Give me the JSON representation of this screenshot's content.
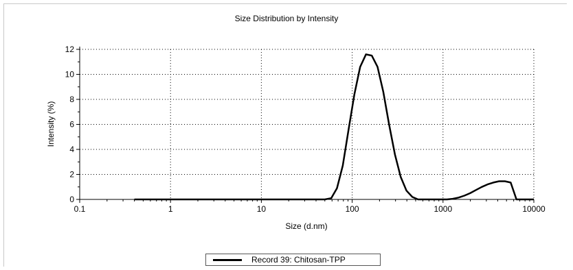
{
  "chart_data": {
    "type": "line",
    "title": "Size Distribution by Intensity",
    "xlabel": "Size (d.nm)",
    "ylabel": "Intensity (%)",
    "xscale": "log",
    "xlim": [
      0.1,
      10000
    ],
    "ylim": [
      0,
      12
    ],
    "x_ticks": [
      "0.1",
      "1",
      "10",
      "100",
      "1000",
      "10000"
    ],
    "y_ticks": [
      "0",
      "2",
      "4",
      "6",
      "8",
      "10",
      "12"
    ],
    "grid": true,
    "legend_position": "bottom-center",
    "series": [
      {
        "name": "Record 39: Chitosan-TPP",
        "color": "#000000",
        "x": [
          0.4,
          1,
          10,
          50,
          58.8,
          68.1,
          78.8,
          91.3,
          105.7,
          122.4,
          141.8,
          164.2,
          190.1,
          220.2,
          255.0,
          295.3,
          342.0,
          396.1,
          458.7,
          531.2,
          615.1,
          712.4,
          825.0,
          955.4,
          1106,
          1281,
          1484,
          1718,
          1990,
          2305,
          2669,
          3091,
          3580,
          4145,
          4801,
          5560,
          6439,
          10000
        ],
        "y": [
          0,
          0,
          0,
          0,
          0.1,
          0.9,
          2.7,
          5.6,
          8.4,
          10.6,
          11.6,
          11.5,
          10.6,
          8.6,
          6.0,
          3.6,
          1.8,
          0.7,
          0.2,
          0,
          0,
          0,
          0,
          0,
          0,
          0.05,
          0.15,
          0.3,
          0.5,
          0.75,
          1.0,
          1.2,
          1.35,
          1.45,
          1.45,
          1.35,
          0,
          0
        ]
      }
    ]
  }
}
